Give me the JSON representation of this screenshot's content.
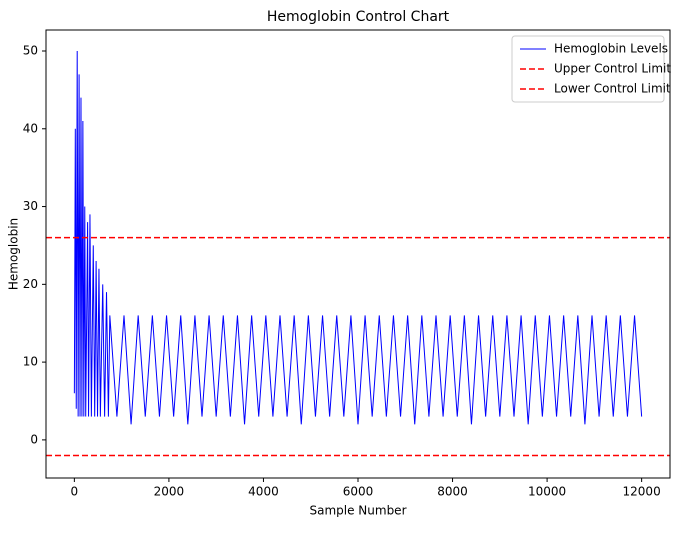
{
  "chart_data": {
    "type": "line",
    "title": "Hemoglobin Control Chart",
    "x_label": "Sample Number",
    "y_label": "Hemoglobin",
    "x": [
      0,
      20,
      40,
      60,
      80,
      100,
      120,
      140,
      160,
      180,
      200,
      220,
      240,
      280,
      300,
      330,
      360,
      400,
      430,
      460,
      490,
      520,
      550,
      600,
      640,
      680,
      720,
      750,
      900,
      1050,
      1200,
      1350,
      1500,
      1650,
      1800,
      1950,
      2100,
      2250,
      2400,
      2550,
      2700,
      2850,
      3000,
      3150,
      3300,
      3450,
      3600,
      3750,
      3900,
      4050,
      4200,
      4350,
      4500,
      4650,
      4800,
      4950,
      5100,
      5250,
      5400,
      5550,
      5700,
      5850,
      6000,
      6150,
      6300,
      6450,
      6600,
      6750,
      6900,
      7050,
      7200,
      7350,
      7500,
      7650,
      7800,
      7950,
      8100,
      8250,
      8400,
      8550,
      8700,
      8850,
      9000,
      9150,
      9300,
      9450,
      9600,
      9750,
      9900,
      10050,
      10200,
      10350,
      10500,
      10650,
      10800,
      10950,
      11100,
      11250,
      11400,
      11550,
      11700,
      11850,
      12000
    ],
    "series": [
      {
        "name": "Hemoglobin Levels",
        "color": "#0000ff",
        "values": [
          6,
          40,
          4,
          50,
          3,
          47,
          3,
          44,
          3,
          41,
          3,
          30,
          3,
          28,
          3,
          29,
          3,
          25,
          3,
          23,
          3,
          22,
          3,
          20,
          3,
          19,
          3,
          16,
          3,
          16,
          2,
          16,
          3,
          16,
          3,
          16,
          3,
          16,
          2,
          16,
          3,
          16,
          3,
          16,
          3,
          16,
          2,
          16,
          3,
          16,
          3,
          16,
          3,
          16,
          2,
          16,
          3,
          16,
          3,
          16,
          3,
          16,
          2,
          16,
          3,
          16,
          3,
          16,
          3,
          16,
          2,
          16,
          3,
          16,
          3,
          16,
          3,
          16,
          2,
          16,
          3,
          16,
          3,
          16,
          3,
          16,
          2,
          16,
          3,
          16,
          3,
          16,
          3,
          16,
          2,
          16,
          3,
          16,
          3,
          16,
          3,
          16,
          3
        ]
      }
    ],
    "hlines": [
      {
        "name": "Upper Control Limit",
        "value": 26,
        "color": "#ff0000"
      },
      {
        "name": "Lower Control Limit",
        "value": -2,
        "color": "#ff0000"
      }
    ],
    "xlim": [
      -600,
      12600
    ],
    "ylim": [
      -4.9,
      52.7
    ],
    "xticks": [
      0,
      2000,
      4000,
      6000,
      8000,
      10000,
      12000
    ],
    "yticks": [
      0,
      10,
      20,
      30,
      40,
      50
    ],
    "legend": "upper right"
  }
}
